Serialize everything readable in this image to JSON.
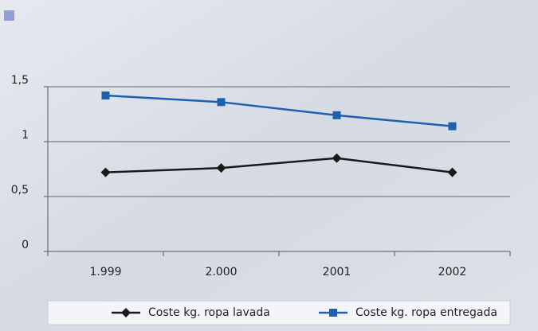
{
  "chart_data": {
    "type": "line",
    "categories": [
      "1.999",
      "2.000",
      "2001",
      "2002"
    ],
    "series": [
      {
        "name": "Coste kg. ropa lavada",
        "color": "#1a1a1a",
        "marker": "diamond",
        "values": [
          0.72,
          0.76,
          0.85,
          0.72
        ]
      },
      {
        "name": "Coste kg. ropa entregada",
        "color": "#1f5fb0",
        "marker": "square",
        "values": [
          1.42,
          1.36,
          1.24,
          1.14
        ]
      }
    ],
    "ylim": [
      0,
      1.5
    ],
    "yticks": [
      0,
      {
        "value": 0.5,
        "label": "0,5"
      },
      1,
      {
        "value": 1.5,
        "label": "1,5"
      }
    ],
    "grid": true
  }
}
